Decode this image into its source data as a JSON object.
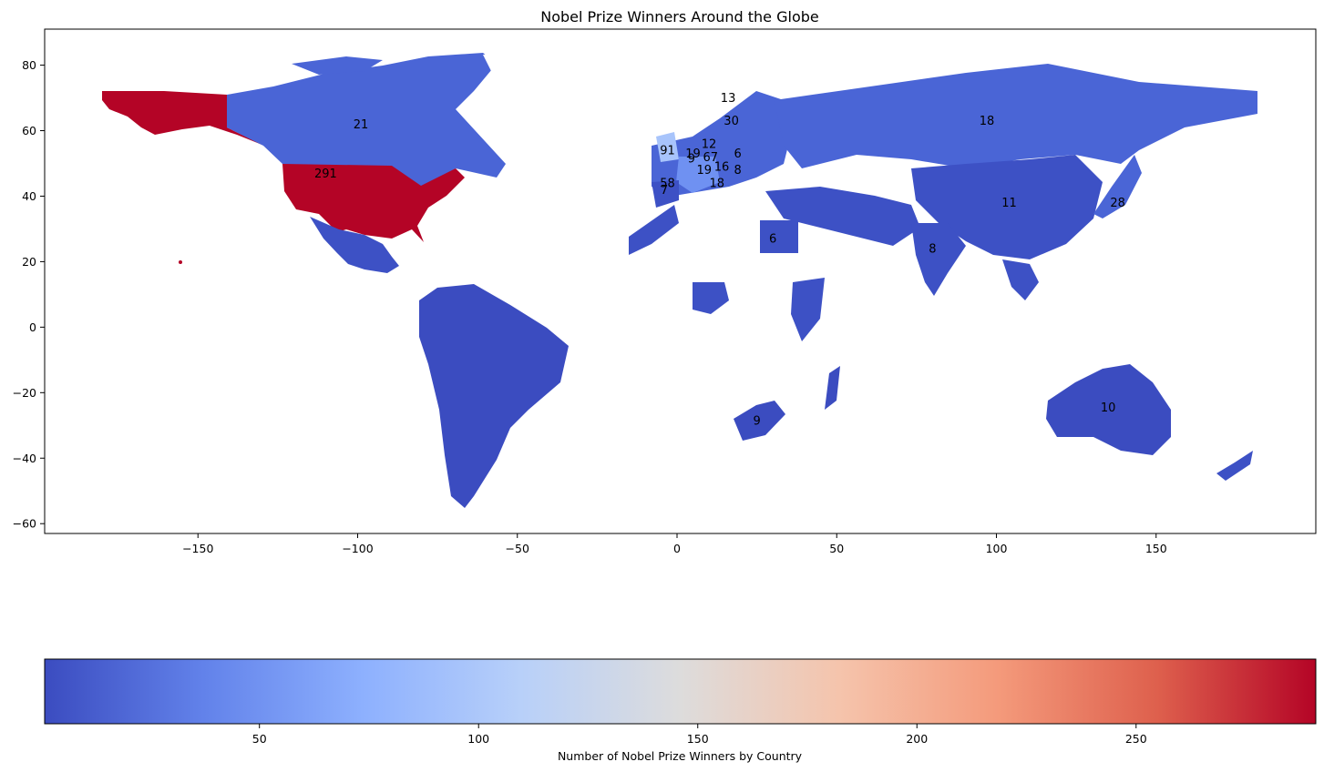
{
  "chart_data": {
    "type": "choropleth",
    "title": "Nobel Prize Winners Around the Globe",
    "xlabel": "",
    "ylabel": "",
    "xlim": [
      -198,
      200
    ],
    "ylim": [
      -63,
      91
    ],
    "x_ticks": [
      -150,
      -100,
      -50,
      0,
      50,
      100,
      150
    ],
    "y_ticks": [
      -60,
      -40,
      -20,
      0,
      20,
      40,
      60,
      80
    ],
    "colormap": "coolwarm",
    "colormap_colors": [
      "#3b4cc0",
      "#6282ea",
      "#8db0fe",
      "#b8d0f9",
      "#dddcdc",
      "#f5c4ac",
      "#f49a7b",
      "#de604d",
      "#b40426"
    ],
    "colorbar": {
      "label": "Number of Nobel Prize Winners by Country",
      "range": [
        1,
        291
      ],
      "ticks": [
        50,
        100,
        150,
        200,
        250
      ]
    },
    "grid": false,
    "annotations": [
      {
        "label": "291",
        "lon": -110,
        "lat": 47
      },
      {
        "label": "21",
        "lon": -99,
        "lat": 62
      },
      {
        "label": "13",
        "lon": 16,
        "lat": 70
      },
      {
        "label": "30",
        "lon": 17,
        "lat": 63
      },
      {
        "label": "18",
        "lon": 97,
        "lat": 63
      },
      {
        "label": "91",
        "lon": -3,
        "lat": 54
      },
      {
        "label": "12",
        "lon": 10,
        "lat": 56
      },
      {
        "label": "19",
        "lon": 5,
        "lat": 53
      },
      {
        "label": "9",
        "lon": 4.5,
        "lat": 51.5
      },
      {
        "label": "67",
        "lon": 10.5,
        "lat": 52
      },
      {
        "label": "6",
        "lon": 19,
        "lat": 53
      },
      {
        "label": "16",
        "lon": 14,
        "lat": 49
      },
      {
        "label": "8",
        "lon": 19,
        "lat": 48
      },
      {
        "label": "19",
        "lon": 8.5,
        "lat": 48
      },
      {
        "label": "58",
        "lon": -3,
        "lat": 44
      },
      {
        "label": "7",
        "lon": -4,
        "lat": 42
      },
      {
        "label": "18",
        "lon": 12.5,
        "lat": 44
      },
      {
        "label": "11",
        "lon": 104,
        "lat": 38
      },
      {
        "label": "28",
        "lon": 138,
        "lat": 38
      },
      {
        "label": "6",
        "lon": 30,
        "lat": 27
      },
      {
        "label": "8",
        "lon": 80,
        "lat": 24
      },
      {
        "label": "9",
        "lon": 25,
        "lat": -28.5
      },
      {
        "label": "10",
        "lon": 135,
        "lat": -24.5
      }
    ]
  }
}
